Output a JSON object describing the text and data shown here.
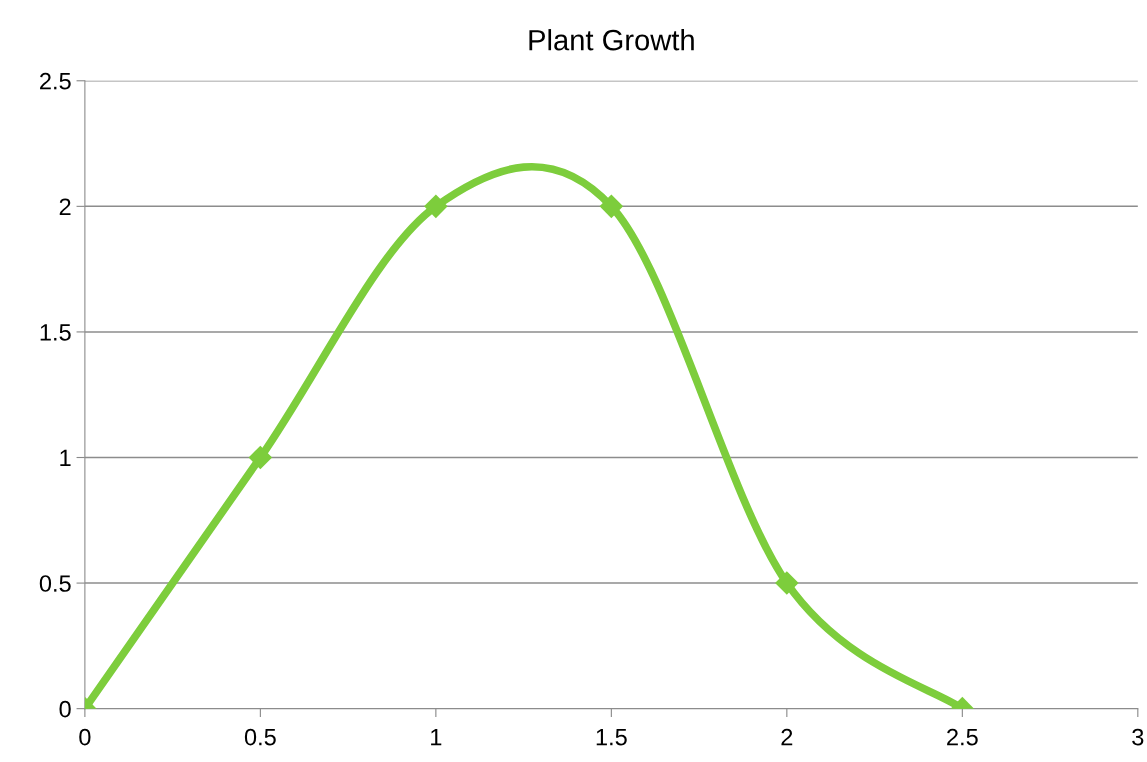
{
  "chart_data": {
    "type": "line",
    "title": "Plant Growth",
    "x": [
      0,
      0.5,
      1,
      1.5,
      2,
      2.5
    ],
    "series": [
      {
        "color": "#7dcd3c",
        "values": [
          0,
          1,
          2,
          2,
          0.5,
          0
        ]
      }
    ],
    "xlim": [
      0,
      3
    ],
    "xticks": [
      0,
      0.5,
      1,
      1.5,
      2,
      2.5,
      3
    ],
    "ylim": [
      0,
      2.5
    ],
    "yticks": [
      0,
      0.5,
      1,
      1.5,
      2,
      2.5
    ],
    "grid": "y",
    "marker": "diamond",
    "line_style": "solid"
  }
}
